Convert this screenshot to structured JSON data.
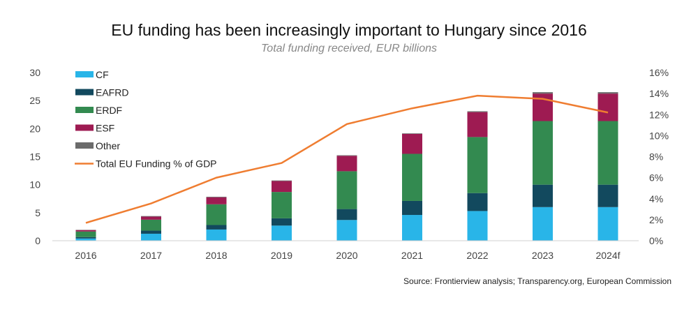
{
  "title": "EU funding has been increasingly important to Hungary since 2016",
  "subtitle": "Total funding received, EUR billions",
  "source": "Source: Frontierview analysis; Transparency.org, European Commission",
  "chart_data": {
    "type": "bar",
    "stacked": true,
    "categories": [
      "2016",
      "2017",
      "2018",
      "2019",
      "2020",
      "2021",
      "2022",
      "2023",
      "2024f"
    ],
    "series": [
      {
        "name": "CF",
        "color": "#29b5e8",
        "values": [
          0.4,
          1.25,
          2.0,
          2.7,
          3.7,
          4.6,
          5.3,
          6.0,
          6.0
        ]
      },
      {
        "name": "EAFRD",
        "color": "#12495e",
        "values": [
          0.25,
          0.55,
          0.8,
          1.3,
          1.95,
          2.5,
          3.2,
          4.0,
          4.0
        ]
      },
      {
        "name": "ERDF",
        "color": "#338a50",
        "values": [
          1.0,
          1.95,
          3.7,
          4.7,
          6.75,
          8.4,
          10.0,
          11.35,
          11.35
        ]
      },
      {
        "name": "ESF",
        "color": "#9e1b52",
        "values": [
          0.25,
          0.55,
          1.25,
          1.95,
          2.75,
          3.55,
          4.45,
          4.9,
          4.9
        ]
      },
      {
        "name": "Other",
        "color": "#6b6b6b",
        "values": [
          0.05,
          0.1,
          0.1,
          0.1,
          0.1,
          0.1,
          0.15,
          0.25,
          0.25
        ]
      }
    ],
    "line_series": {
      "name": "Total EU Funding % of GDP",
      "color": "#ef7d31",
      "axis": "right",
      "values": [
        1.7,
        3.55,
        6.0,
        7.4,
        11.1,
        12.6,
        13.8,
        13.5,
        12.2
      ]
    },
    "ylim": [
      0,
      30
    ],
    "yticks": [
      "0",
      "5",
      "10",
      "15",
      "20",
      "25",
      "30"
    ],
    "y2lim": [
      0,
      16
    ],
    "y2ticks": [
      "0%",
      "2%",
      "4%",
      "6%",
      "8%",
      "10%",
      "12%",
      "14%",
      "16%"
    ],
    "grid": false,
    "legend": "top-left"
  }
}
